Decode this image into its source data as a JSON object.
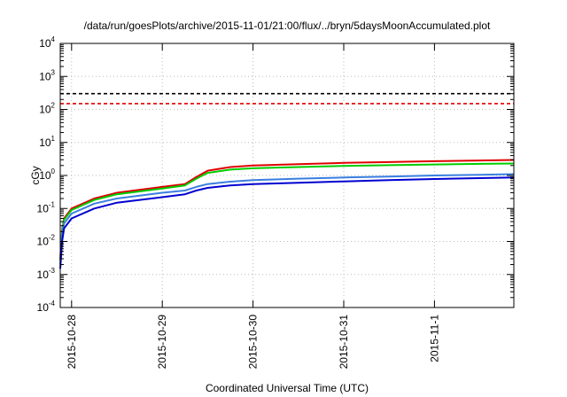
{
  "chart_data": {
    "type": "line",
    "title": "/data/run/goesPlots/archive/2015-11-01/21:00/flux/../bryn/5daysMoonAccumulated.plot",
    "xlabel": "Coordinated Universal Time (UTC)",
    "ylabel": "cGy",
    "x_tick_labels": [
      "2015-10-28",
      "2015-10-29",
      "2015-10-30",
      "2015-10-31",
      "2015-11-1"
    ],
    "xlim": [
      "2015-10-27 21:00",
      "2015-11-01 21:00"
    ],
    "ylim": [
      0.0001,
      10000
    ],
    "yscale": "log",
    "y_ticks": [
      {
        "base": "10",
        "exp": "-4"
      },
      {
        "base": "10",
        "exp": "-3"
      },
      {
        "base": "10",
        "exp": "-2"
      },
      {
        "base": "10",
        "exp": "-1"
      },
      {
        "base": "10",
        "exp": "0"
      },
      {
        "base": "10",
        "exp": "1"
      },
      {
        "base": "10",
        "exp": "2"
      },
      {
        "base": "10",
        "exp": "3"
      },
      {
        "base": "10",
        "exp": "4"
      }
    ],
    "grid": true,
    "reference_lines": [
      {
        "y": 300,
        "color": "#000000",
        "style": "dashed"
      },
      {
        "y": 150,
        "color": "#e00000",
        "style": "dashed"
      }
    ],
    "series": [
      {
        "color": "#e00000",
        "x": [
          "2015-10-27 21:00",
          "2015-10-27 21:30",
          "2015-10-27 22:00",
          "2015-10-28 00:00",
          "2015-10-28 06:00",
          "2015-10-28 12:00",
          "2015-10-29 00:00",
          "2015-10-29 06:00",
          "2015-10-29 09:00",
          "2015-10-29 12:00",
          "2015-10-29 18:00",
          "2015-10-30 00:00",
          "2015-10-30 12:00",
          "2015-10-31 00:00",
          "2015-10-31 12:00",
          "2015-11-01 00:00",
          "2015-11-01 12:00",
          "2015-11-01 21:00"
        ],
        "y": [
          0.003,
          0.022,
          0.05,
          0.1,
          0.2,
          0.3,
          0.45,
          0.55,
          0.9,
          1.4,
          1.8,
          2.0,
          2.2,
          2.4,
          2.55,
          2.7,
          2.85,
          2.95
        ]
      },
      {
        "color": "#00cc00",
        "x": [
          "2015-10-27 21:00",
          "2015-10-27 21:30",
          "2015-10-27 22:00",
          "2015-10-28 00:00",
          "2015-10-28 06:00",
          "2015-10-28 12:00",
          "2015-10-29 00:00",
          "2015-10-29 06:00",
          "2015-10-29 09:00",
          "2015-10-29 12:00",
          "2015-10-29 18:00",
          "2015-10-30 00:00",
          "2015-10-30 12:00",
          "2015-10-31 00:00",
          "2015-10-31 12:00",
          "2015-11-01 00:00",
          "2015-11-01 12:00",
          "2015-11-01 21:00"
        ],
        "y": [
          0.0025,
          0.02,
          0.045,
          0.09,
          0.18,
          0.27,
          0.4,
          0.5,
          0.8,
          1.2,
          1.5,
          1.65,
          1.8,
          1.95,
          2.05,
          2.15,
          2.25,
          2.3
        ]
      },
      {
        "color": "#3a7fe0",
        "x": [
          "2015-10-27 21:00",
          "2015-10-27 21:30",
          "2015-10-27 22:00",
          "2015-10-28 00:00",
          "2015-10-28 06:00",
          "2015-10-28 12:00",
          "2015-10-29 00:00",
          "2015-10-29 06:00",
          "2015-10-29 09:00",
          "2015-10-29 12:00",
          "2015-10-29 18:00",
          "2015-10-30 00:00",
          "2015-10-30 12:00",
          "2015-10-31 00:00",
          "2015-10-31 12:00",
          "2015-11-01 00:00",
          "2015-11-01 12:00",
          "2015-11-01 21:00"
        ],
        "y": [
          0.002,
          0.015,
          0.035,
          0.07,
          0.14,
          0.2,
          0.3,
          0.35,
          0.45,
          0.55,
          0.65,
          0.72,
          0.8,
          0.87,
          0.93,
          1.0,
          1.05,
          1.1
        ]
      },
      {
        "color": "#0000d0",
        "x": [
          "2015-10-27 21:00",
          "2015-10-27 21:30",
          "2015-10-27 22:00",
          "2015-10-28 00:00",
          "2015-10-28 06:00",
          "2015-10-28 12:00",
          "2015-10-29 00:00",
          "2015-10-29 06:00",
          "2015-10-29 09:00",
          "2015-10-29 12:00",
          "2015-10-29 18:00",
          "2015-10-30 00:00",
          "2015-10-30 12:00",
          "2015-10-31 00:00",
          "2015-10-31 12:00",
          "2015-11-01 00:00",
          "2015-11-01 12:00",
          "2015-11-01 21:00"
        ],
        "y": [
          0.0015,
          0.01,
          0.025,
          0.05,
          0.1,
          0.15,
          0.22,
          0.27,
          0.35,
          0.42,
          0.5,
          0.55,
          0.6,
          0.66,
          0.72,
          0.78,
          0.83,
          0.87
        ]
      }
    ]
  }
}
